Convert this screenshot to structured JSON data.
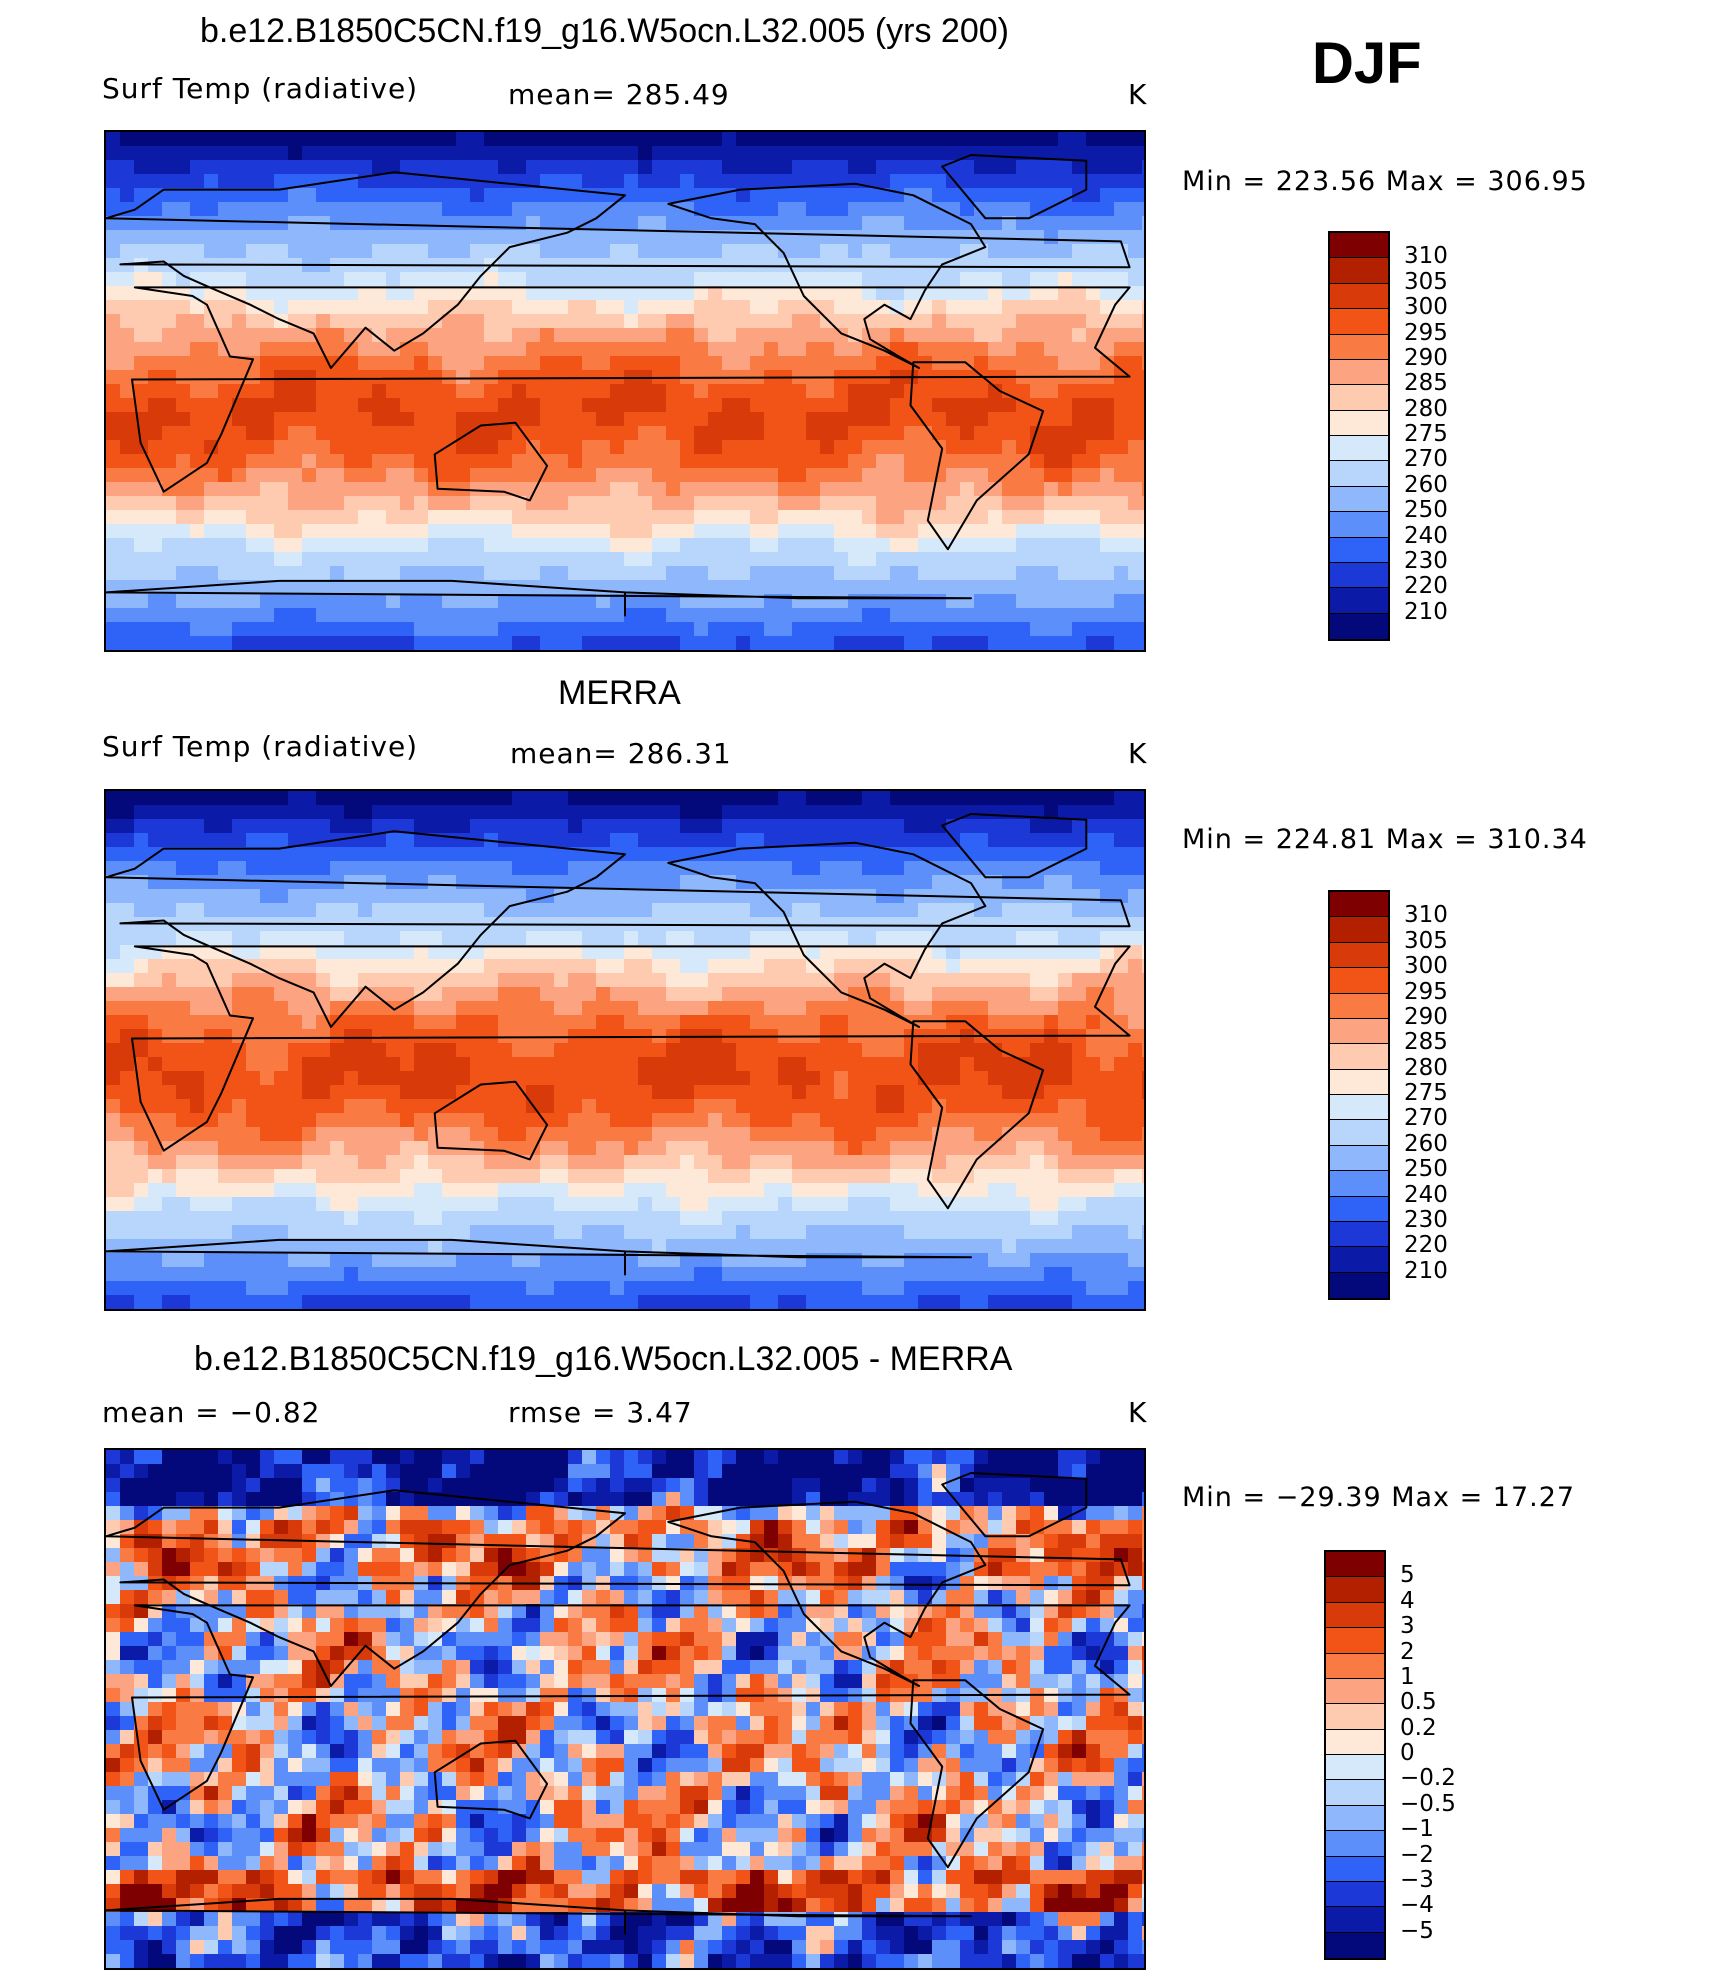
{
  "season": "DJF",
  "panels": [
    {
      "title": "b.e12.B1850C5CN.f19_g16.W5ocn.L32.005 (yrs 200)",
      "left_label": "Surf Temp (radiative)",
      "center_label": "mean= 285.49",
      "units": "K",
      "minmax": "Min = 223.56 Max = 306.95",
      "kind": "abs",
      "colorbar": {
        "labels": [
          "310",
          "305",
          "300",
          "295",
          "290",
          "285",
          "280",
          "275",
          "270",
          "260",
          "250",
          "240",
          "230",
          "220",
          "210"
        ],
        "colors": [
          "#7f0000",
          "#b22000",
          "#d83a0a",
          "#f25418",
          "#fa7a44",
          "#fca381",
          "#fecbb1",
          "#fee8d8",
          "#d6e9fb",
          "#b8d6fc",
          "#8eb8fb",
          "#5d8ffa",
          "#2f62f7",
          "#1c39d8",
          "#0c1aa8",
          "#03087a"
        ]
      }
    },
    {
      "title": "MERRA",
      "left_label": "Surf Temp (radiative)",
      "center_label": "mean= 286.31",
      "units": "K",
      "minmax": "Min = 224.81 Max = 310.34",
      "kind": "abs",
      "colorbar": {
        "labels": [
          "310",
          "305",
          "300",
          "295",
          "290",
          "285",
          "280",
          "275",
          "270",
          "260",
          "250",
          "240",
          "230",
          "220",
          "210"
        ],
        "colors": [
          "#7f0000",
          "#b22000",
          "#d83a0a",
          "#f25418",
          "#fa7a44",
          "#fca381",
          "#fecbb1",
          "#fee8d8",
          "#d6e9fb",
          "#b8d6fc",
          "#8eb8fb",
          "#5d8ffa",
          "#2f62f7",
          "#1c39d8",
          "#0c1aa8",
          "#03087a"
        ]
      }
    },
    {
      "title": "b.e12.B1850C5CN.f19_g16.W5ocn.L32.005 - MERRA",
      "left_label": "mean =   −0.82",
      "center_label": "rmse =    3.47",
      "units": "K",
      "minmax": "Min = −29.39 Max =  17.27",
      "kind": "diff",
      "colorbar": {
        "labels": [
          "5",
          "4",
          "3",
          "2",
          "1",
          "0.5",
          "0.2",
          "0",
          "−0.2",
          "−0.5",
          "−1",
          "−2",
          "−3",
          "−4",
          "−5"
        ],
        "colors": [
          "#7f0000",
          "#b22000",
          "#d83a0a",
          "#f25418",
          "#fa7a44",
          "#fca381",
          "#fecbb1",
          "#fee8d8",
          "#d6e9fb",
          "#b8d6fc",
          "#8eb8fb",
          "#5d8ffa",
          "#2f62f7",
          "#1c39d8",
          "#0c1aa8",
          "#03087a"
        ]
      }
    }
  ]
}
